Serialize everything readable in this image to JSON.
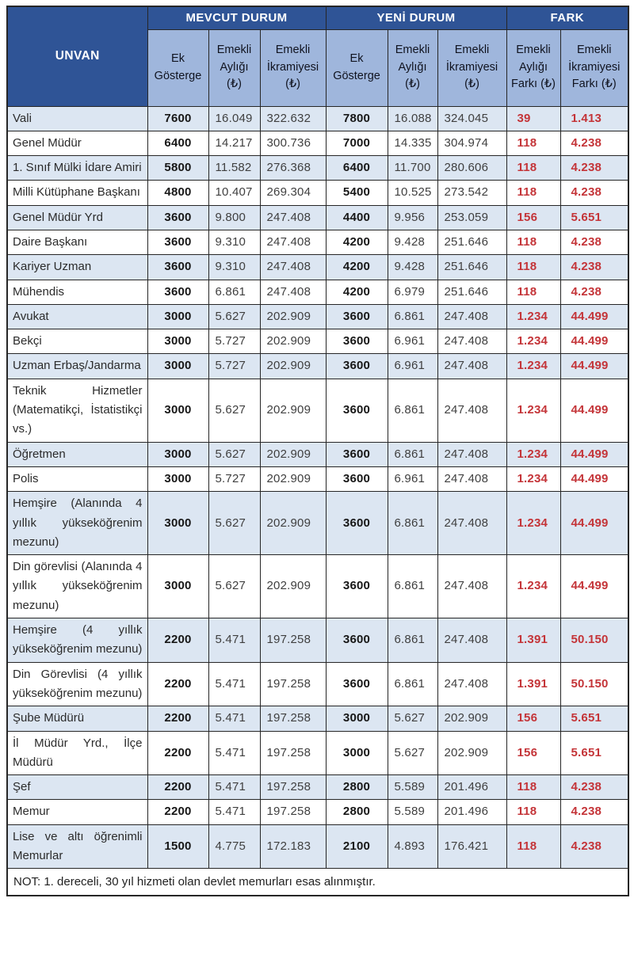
{
  "table": {
    "unvan_header": "UNVAN",
    "groups": [
      {
        "label": "MEVCUT DURUM"
      },
      {
        "label": "YENİ DURUM"
      },
      {
        "label": "FARK"
      }
    ],
    "sub_headers": [
      "Ek Gösterge",
      "Emekli Aylığı (₺)",
      "Emekli İkramiyesi (₺)",
      "Ek Gösterge",
      "Emekli Aylığı (₺)",
      "Emekli İkramiyesi (₺)",
      "Emekli Aylığı Farkı (₺)",
      "Emekli İkramiyesi Farkı (₺)"
    ],
    "note": "NOT: 1. dereceli, 30 yıl hizmeti olan devlet memurları esas alınmıştır."
  },
  "colors": {
    "header_bg": "#2F5496",
    "subheader_bg": "#9FB6DC",
    "row_alt_bg": "#DCE6F2",
    "fark_red": "#C43438",
    "border": "#262626"
  },
  "chart_data": {
    "type": "table",
    "title": "",
    "columns": [
      "UNVAN",
      "Mevcut Durum Ek Gösterge",
      "Mevcut Durum Emekli Aylığı (₺)",
      "Mevcut Durum Emekli İkramiyesi (₺)",
      "Yeni Durum Ek Gösterge",
      "Yeni Durum Emekli Aylığı (₺)",
      "Yeni Durum Emekli İkramiyesi (₺)",
      "Emekli Aylığı Farkı (₺)",
      "Emekli İkramiyesi Farkı (₺)"
    ],
    "rows": [
      [
        "Vali",
        "7600",
        "16.049",
        "322.632",
        "7800",
        "16.088",
        "324.045",
        "39",
        "1.413"
      ],
      [
        "Genel Müdür",
        "6400",
        "14.217",
        "300.736",
        "7000",
        "14.335",
        "304.974",
        "118",
        "4.238"
      ],
      [
        "1. Sınıf Mülki İdare Amiri",
        "5800",
        "11.582",
        "276.368",
        "6400",
        "11.700",
        "280.606",
        "118",
        "4.238"
      ],
      [
        "Milli Kütüphane Başkanı",
        "4800",
        "10.407",
        "269.304",
        "5400",
        "10.525",
        "273.542",
        "118",
        "4.238"
      ],
      [
        "Genel Müdür Yrd",
        "3600",
        "9.800",
        "247.408",
        "4400",
        "9.956",
        "253.059",
        "156",
        "5.651"
      ],
      [
        "Daire Başkanı",
        "3600",
        "9.310",
        "247.408",
        "4200",
        "9.428",
        "251.646",
        "118",
        "4.238"
      ],
      [
        "Kariyer Uzman",
        "3600",
        "9.310",
        "247.408",
        "4200",
        "9.428",
        "251.646",
        "118",
        "4.238"
      ],
      [
        "Mühendis",
        "3600",
        "6.861",
        "247.408",
        "4200",
        "6.979",
        "251.646",
        "118",
        "4.238"
      ],
      [
        "Avukat",
        "3000",
        "5.627",
        "202.909",
        "3600",
        "6.861",
        "247.408",
        "1.234",
        "44.499"
      ],
      [
        "Bekçi",
        "3000",
        "5.727",
        "202.909",
        "3600",
        "6.961",
        "247.408",
        "1.234",
        "44.499"
      ],
      [
        "Uzman Erbaş/Jandarma",
        "3000",
        "5.727",
        "202.909",
        "3600",
        "6.961",
        "247.408",
        "1.234",
        "44.499"
      ],
      [
        "Teknik Hizmetler (Matematikçi, İstatistikçi vs.)",
        "3000",
        "5.627",
        "202.909",
        "3600",
        "6.861",
        "247.408",
        "1.234",
        "44.499"
      ],
      [
        "Öğretmen",
        "3000",
        "5.627",
        "202.909",
        "3600",
        "6.861",
        "247.408",
        "1.234",
        "44.499"
      ],
      [
        "Polis",
        "3000",
        "5.727",
        "202.909",
        "3600",
        "6.961",
        "247.408",
        "1.234",
        "44.499"
      ],
      [
        "Hemşire (Alanında 4 yıllık yükseköğrenim mezunu)",
        "3000",
        "5.627",
        "202.909",
        "3600",
        "6.861",
        "247.408",
        "1.234",
        "44.499"
      ],
      [
        "Din görevlisi (Alanında 4 yıllık yükseköğrenim mezunu)",
        "3000",
        "5.627",
        "202.909",
        "3600",
        "6.861",
        "247.408",
        "1.234",
        "44.499"
      ],
      [
        "Hemşire (4 yıllık yükseköğrenim mezunu)",
        "2200",
        "5.471",
        "197.258",
        "3600",
        "6.861",
        "247.408",
        "1.391",
        "50.150"
      ],
      [
        "Din Görevlisi (4 yıllık yükseköğrenim mezunu)",
        "2200",
        "5.471",
        "197.258",
        "3600",
        "6.861",
        "247.408",
        "1.391",
        "50.150"
      ],
      [
        "Şube Müdürü",
        "2200",
        "5.471",
        "197.258",
        "3000",
        "5.627",
        "202.909",
        "156",
        "5.651"
      ],
      [
        "İl Müdür Yrd., İlçe Müdürü",
        "2200",
        "5.471",
        "197.258",
        "3000",
        "5.627",
        "202.909",
        "156",
        "5.651"
      ],
      [
        "Şef",
        "2200",
        "5.471",
        "197.258",
        "2800",
        "5.589",
        "201.496",
        "118",
        "4.238"
      ],
      [
        "Memur",
        "2200",
        "5.471",
        "197.258",
        "2800",
        "5.589",
        "201.496",
        "118",
        "4.238"
      ],
      [
        "Lise ve altı öğrenimli Memurlar",
        "1500",
        "4.775",
        "172.183",
        "2100",
        "4.893",
        "176.421",
        "118",
        "4.238"
      ]
    ]
  }
}
